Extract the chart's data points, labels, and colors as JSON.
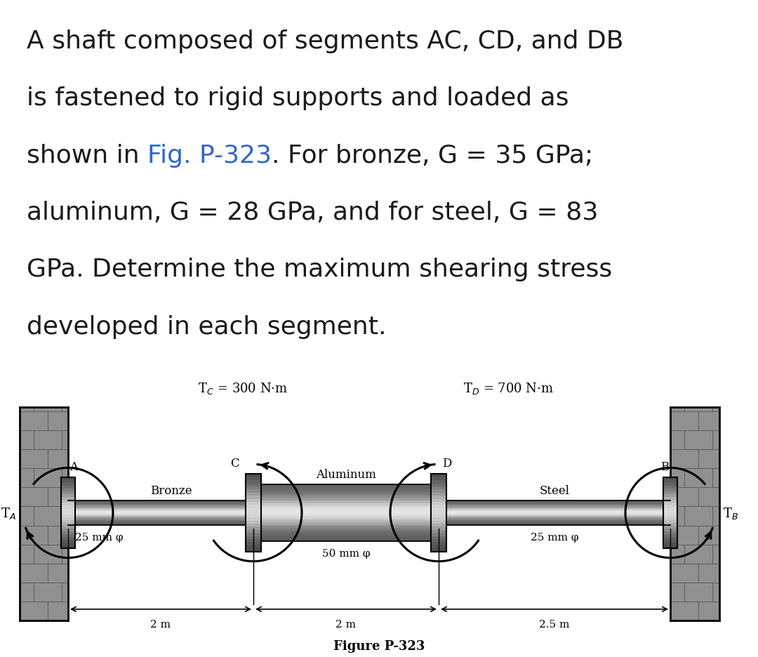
{
  "bg_color": "#ffffff",
  "text_color": "#1a1a1a",
  "blue_color": "#3366cc",
  "title_lines_plain": [
    "A shaft composed of segments AC, CD, and DB",
    "is fastened to rigid supports and loaded as",
    "shown in Fig. P-323. For bronze, G = 35 GPa;",
    "aluminum, G = 28 GPa, and for steel, G = 83",
    "GPa. Determine the maximum shearing stress",
    "developed in each segment."
  ],
  "fig_caption": "Figure P-323",
  "tc_label": "T",
  "tc_sub": "C",
  "tc_val": " = 300 N·m",
  "td_label": "T",
  "td_sub": "D",
  "td_val": " = 700 N·m",
  "label_A": "A",
  "label_B": "B",
  "label_C": "C",
  "label_D": "D",
  "label_TA": "T",
  "label_TA_sub": "A",
  "label_TB": "T",
  "label_TB_sub": "B",
  "label_bronze": "Bronze",
  "label_aluminum": "Aluminum",
  "label_steel": "Steel",
  "diam_small": "25 mm φ",
  "diam_large": "50 mm φ",
  "len_AC": "2 m",
  "len_CD": "2 m",
  "len_DB": "2.5 m",
  "title_fontsize": 26,
  "diagram_fontsize": 12
}
